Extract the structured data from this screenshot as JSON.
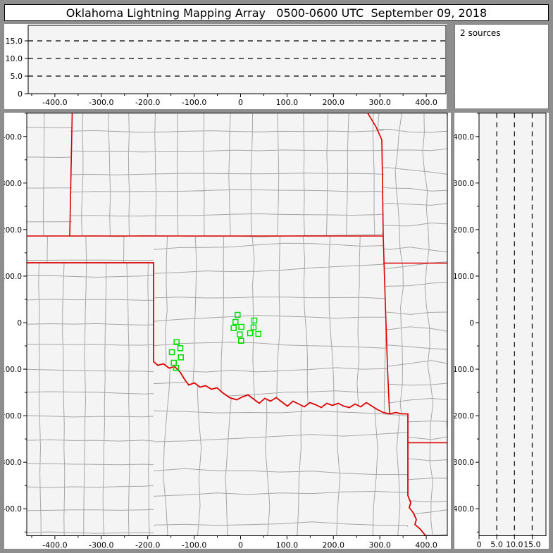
{
  "title": "Oklahoma Lightning Mapping Array   0500-0600 UTC  September 09, 2018",
  "sources_box": {
    "label": "2 sources"
  },
  "colors": {
    "source_marker": "#00dd00",
    "state_border": "#dd0000",
    "county_line": "#a6a6a6",
    "plot_bg": "#f4f4f4",
    "frame": "#8e8e8e",
    "panel_bg": "#ffffff",
    "axis": "#000000"
  },
  "axes": {
    "ew_km": {
      "ticks": [
        {
          "v": -400,
          "label": "-400.0"
        },
        {
          "v": -300,
          "label": "-300.0"
        },
        {
          "v": -200,
          "label": "-200.0"
        },
        {
          "v": -100,
          "label": "-100.0"
        },
        {
          "v": 0,
          "label": "0"
        },
        {
          "v": 100,
          "label": "100.0"
        },
        {
          "v": 200,
          "label": "200.0"
        },
        {
          "v": 300,
          "label": "300.0"
        },
        {
          "v": 400,
          "label": "400.0"
        }
      ],
      "minor_step": 50,
      "range": [
        -455,
        448
      ]
    },
    "ns_km": {
      "ticks": [
        {
          "v": 400,
          "label": "400.0"
        },
        {
          "v": 300,
          "label": "300.0"
        },
        {
          "v": 200,
          "label": "200.0"
        },
        {
          "v": 100,
          "label": "100.0"
        },
        {
          "v": 0,
          "label": "0"
        },
        {
          "v": -100,
          "label": "-100.0"
        },
        {
          "v": -200,
          "label": "-200.0"
        },
        {
          "v": -300,
          "label": "-300.0"
        },
        {
          "v": -400,
          "label": "-400.0"
        }
      ],
      "minor_step": 50,
      "range": [
        451,
        -458
      ]
    },
    "alt_km": {
      "ticks": [
        {
          "v": 0,
          "label": "0"
        },
        {
          "v": 5,
          "label": "5.0"
        },
        {
          "v": 10,
          "label": "10.0"
        },
        {
          "v": 15,
          "label": "15.0"
        }
      ],
      "dashed_levels": [
        5,
        10,
        15
      ],
      "range": [
        0,
        19.4
      ]
    }
  },
  "chart_data": {
    "type": "scatter",
    "title": "Oklahoma Lightning Mapping Array 0500-0600 UTC September 09, 2018",
    "marker": "open-green-square",
    "legend_text": "2 sources",
    "panels": [
      {
        "name": "altitude-vs-east-west",
        "xlabel_km": [
          -400,
          400
        ],
        "ylim_km": [
          0,
          19.4
        ],
        "dashed_altitudes_km": [
          5,
          10,
          15
        ],
        "points": []
      },
      {
        "name": "plan-view-map",
        "xlim_km": [
          -455,
          448
        ],
        "ylim_km": [
          -458,
          451
        ]
      },
      {
        "name": "altitude-vs-north-south",
        "xlim_km": [
          0,
          18.9
        ],
        "dashed_altitudes_km": [
          5,
          10,
          15
        ],
        "points": []
      }
    ],
    "sources_km_east_north": [
      [
        -6.4,
        16.7
      ],
      [
        -10.9,
        1.5
      ],
      [
        -14.9,
        -11.7
      ],
      [
        1.8,
        -9.1
      ],
      [
        28.1,
        -10.1
      ],
      [
        29.6,
        4.5
      ],
      [
        -1.8,
        -25.3
      ],
      [
        20.5,
        -22.7
      ],
      [
        38.2,
        -24.2
      ],
      [
        1.2,
        -38.9
      ],
      [
        -137.8,
        -41.9
      ],
      [
        -129.7,
        -55.0
      ],
      [
        -147.9,
        -63.6
      ],
      [
        -128.7,
        -74.6
      ],
      [
        -143.9,
        -86.3
      ],
      [
        -138.9,
        -97.4
      ]
    ]
  }
}
